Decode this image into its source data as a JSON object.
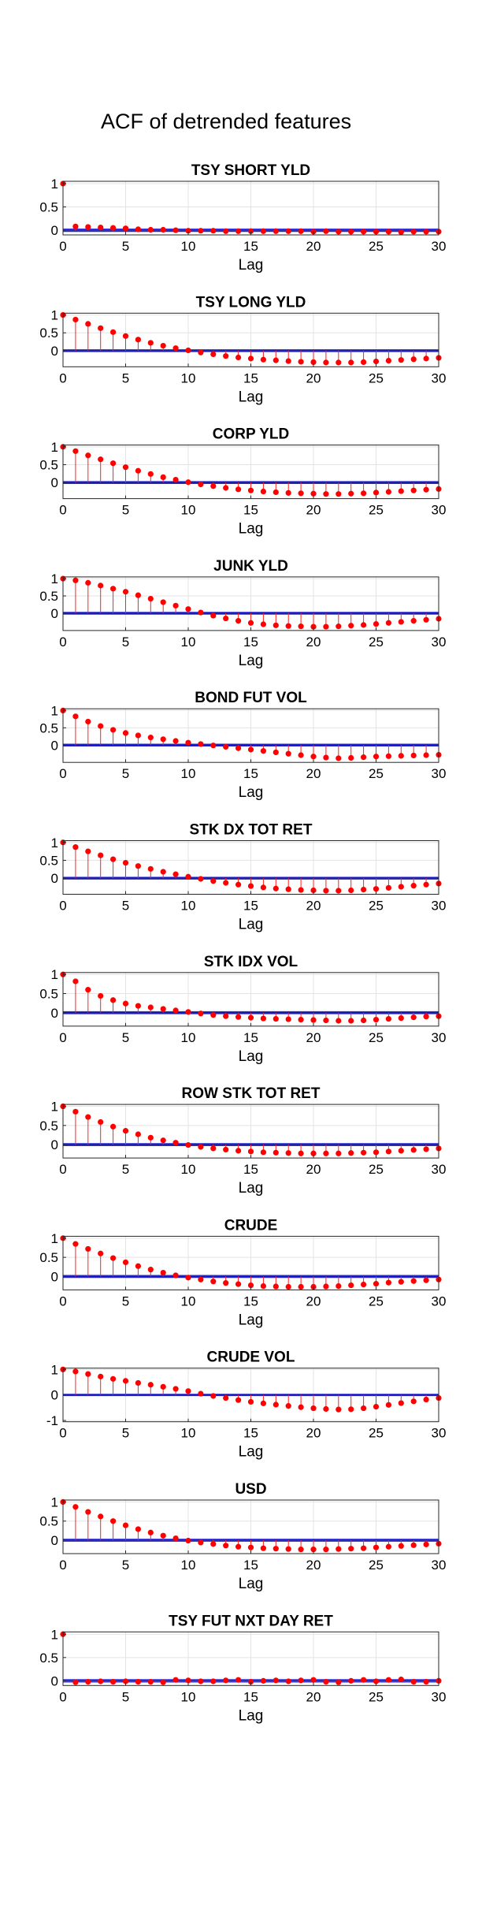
{
  "figure": {
    "title": "ACF of detrended features"
  },
  "chart_data": [
    {
      "type": "stem",
      "title": "TSY SHORT YLD",
      "xlabel": "Lag",
      "ylabel": "",
      "xlim": [
        0,
        30
      ],
      "ylim": [
        -0.1,
        1.05
      ],
      "xticks": [
        0,
        5,
        10,
        15,
        20,
        25,
        30
      ],
      "yticks": [
        0,
        0.5,
        1
      ],
      "ytick_labels": [
        "0",
        "0.5",
        "1"
      ],
      "grid": true,
      "conf_bound": 0.025,
      "x": [
        0,
        1,
        2,
        3,
        4,
        5,
        6,
        7,
        8,
        9,
        10,
        11,
        12,
        13,
        14,
        15,
        16,
        17,
        18,
        19,
        20,
        21,
        22,
        23,
        24,
        25,
        26,
        27,
        28,
        29,
        30
      ],
      "values": [
        1,
        0.08,
        0.07,
        0.06,
        0.05,
        0.04,
        0.02,
        0.01,
        0.01,
        0.0,
        -0.01,
        -0.01,
        -0.01,
        -0.02,
        -0.02,
        -0.02,
        -0.02,
        -0.02,
        -0.02,
        -0.02,
        -0.03,
        -0.02,
        -0.03,
        -0.03,
        -0.03,
        -0.03,
        -0.03,
        -0.04,
        -0.03,
        -0.03,
        -0.03
      ]
    },
    {
      "type": "stem",
      "title": "TSY LONG YLD",
      "xlabel": "Lag",
      "ylabel": "",
      "xlim": [
        0,
        30
      ],
      "ylim": [
        -0.45,
        1.05
      ],
      "xticks": [
        0,
        5,
        10,
        15,
        20,
        25,
        30
      ],
      "yticks": [
        0,
        0.5,
        1
      ],
      "ytick_labels": [
        "0",
        "0.5",
        "1"
      ],
      "grid": true,
      "conf_bound": 0.025,
      "x": [
        0,
        1,
        2,
        3,
        4,
        5,
        6,
        7,
        8,
        9,
        10,
        11,
        12,
        13,
        14,
        15,
        16,
        17,
        18,
        19,
        20,
        21,
        22,
        23,
        24,
        25,
        26,
        27,
        28,
        29,
        30
      ],
      "values": [
        1,
        0.87,
        0.75,
        0.63,
        0.52,
        0.41,
        0.31,
        0.22,
        0.14,
        0.07,
        0.01,
        -0.05,
        -0.1,
        -0.15,
        -0.19,
        -0.22,
        -0.25,
        -0.27,
        -0.29,
        -0.31,
        -0.32,
        -0.33,
        -0.33,
        -0.33,
        -0.32,
        -0.3,
        -0.28,
        -0.26,
        -0.24,
        -0.22,
        -0.2
      ]
    },
    {
      "type": "stem",
      "title": "CORP YLD",
      "xlabel": "Lag",
      "ylabel": "",
      "xlim": [
        0,
        30
      ],
      "ylim": [
        -0.45,
        1.05
      ],
      "xticks": [
        0,
        5,
        10,
        15,
        20,
        25,
        30
      ],
      "yticks": [
        0,
        0.5,
        1
      ],
      "ytick_labels": [
        "0",
        "0.5",
        "1"
      ],
      "grid": true,
      "conf_bound": 0.025,
      "x": [
        0,
        1,
        2,
        3,
        4,
        5,
        6,
        7,
        8,
        9,
        10,
        11,
        12,
        13,
        14,
        15,
        16,
        17,
        18,
        19,
        20,
        21,
        22,
        23,
        24,
        25,
        26,
        27,
        28,
        29,
        30
      ],
      "values": [
        1,
        0.88,
        0.76,
        0.65,
        0.54,
        0.43,
        0.33,
        0.24,
        0.15,
        0.08,
        0.01,
        -0.05,
        -0.1,
        -0.15,
        -0.19,
        -0.22,
        -0.25,
        -0.27,
        -0.29,
        -0.3,
        -0.31,
        -0.32,
        -0.32,
        -0.31,
        -0.3,
        -0.28,
        -0.26,
        -0.24,
        -0.22,
        -0.2,
        -0.18
      ]
    },
    {
      "type": "stem",
      "title": "JUNK YLD",
      "xlabel": "Lag",
      "ylabel": "",
      "xlim": [
        0,
        30
      ],
      "ylim": [
        -0.5,
        1.05
      ],
      "xticks": [
        0,
        5,
        10,
        15,
        20,
        25,
        30
      ],
      "yticks": [
        0,
        0.5,
        1
      ],
      "ytick_labels": [
        "0",
        "0.5",
        "1"
      ],
      "grid": true,
      "conf_bound": 0.025,
      "x": [
        0,
        1,
        2,
        3,
        4,
        5,
        6,
        7,
        8,
        9,
        10,
        11,
        12,
        13,
        14,
        15,
        16,
        17,
        18,
        19,
        20,
        21,
        22,
        23,
        24,
        25,
        26,
        27,
        28,
        29,
        30
      ],
      "values": [
        1,
        0.95,
        0.88,
        0.8,
        0.71,
        0.62,
        0.52,
        0.42,
        0.32,
        0.22,
        0.12,
        0.02,
        -0.07,
        -0.15,
        -0.22,
        -0.28,
        -0.32,
        -0.35,
        -0.37,
        -0.38,
        -0.39,
        -0.39,
        -0.38,
        -0.36,
        -0.34,
        -0.31,
        -0.28,
        -0.25,
        -0.22,
        -0.19,
        -0.16
      ]
    },
    {
      "type": "stem",
      "title": "BOND FUT VOL",
      "xlabel": "Lag",
      "ylabel": "",
      "xlim": [
        0,
        30
      ],
      "ylim": [
        -0.5,
        1.05
      ],
      "xticks": [
        0,
        5,
        10,
        15,
        20,
        25,
        30
      ],
      "yticks": [
        0,
        0.5,
        1
      ],
      "ytick_labels": [
        "0",
        "0.5",
        "1"
      ],
      "grid": true,
      "conf_bound": 0.025,
      "x": [
        0,
        1,
        2,
        3,
        4,
        5,
        6,
        7,
        8,
        9,
        10,
        11,
        12,
        13,
        14,
        15,
        16,
        17,
        18,
        19,
        20,
        21,
        22,
        23,
        24,
        25,
        26,
        27,
        28,
        29,
        30
      ],
      "values": [
        1,
        0.83,
        0.68,
        0.55,
        0.44,
        0.35,
        0.28,
        0.22,
        0.17,
        0.12,
        0.07,
        0.03,
        -0.01,
        -0.05,
        -0.09,
        -0.13,
        -0.17,
        -0.21,
        -0.25,
        -0.29,
        -0.33,
        -0.36,
        -0.38,
        -0.37,
        -0.35,
        -0.33,
        -0.32,
        -0.31,
        -0.3,
        -0.29,
        -0.28
      ]
    },
    {
      "type": "stem",
      "title": "STK DX TOT RET",
      "xlabel": "Lag",
      "ylabel": "",
      "xlim": [
        0,
        30
      ],
      "ylim": [
        -0.45,
        1.05
      ],
      "xticks": [
        0,
        5,
        10,
        15,
        20,
        25,
        30
      ],
      "yticks": [
        0,
        0.5,
        1
      ],
      "ytick_labels": [
        "0",
        "0.5",
        "1"
      ],
      "grid": true,
      "conf_bound": 0.025,
      "x": [
        0,
        1,
        2,
        3,
        4,
        5,
        6,
        7,
        8,
        9,
        10,
        11,
        12,
        13,
        14,
        15,
        16,
        17,
        18,
        19,
        20,
        21,
        22,
        23,
        24,
        25,
        26,
        27,
        28,
        29,
        30
      ],
      "values": [
        1,
        0.87,
        0.75,
        0.64,
        0.53,
        0.43,
        0.34,
        0.26,
        0.18,
        0.11,
        0.04,
        -0.02,
        -0.08,
        -0.13,
        -0.18,
        -0.22,
        -0.26,
        -0.29,
        -0.31,
        -0.33,
        -0.34,
        -0.35,
        -0.35,
        -0.34,
        -0.32,
        -0.3,
        -0.27,
        -0.24,
        -0.21,
        -0.18,
        -0.15
      ]
    },
    {
      "type": "stem",
      "title": "STK IDX VOL",
      "xlabel": "Lag",
      "ylabel": "",
      "xlim": [
        0,
        30
      ],
      "ylim": [
        -0.35,
        1.05
      ],
      "xticks": [
        0,
        5,
        10,
        15,
        20,
        25,
        30
      ],
      "yticks": [
        0,
        0.5,
        1
      ],
      "ytick_labels": [
        "0",
        "0.5",
        "1"
      ],
      "grid": true,
      "conf_bound": 0.025,
      "x": [
        0,
        1,
        2,
        3,
        4,
        5,
        6,
        7,
        8,
        9,
        10,
        11,
        12,
        13,
        14,
        15,
        16,
        17,
        18,
        19,
        20,
        21,
        22,
        23,
        24,
        25,
        26,
        27,
        28,
        29,
        30
      ],
      "values": [
        1,
        0.82,
        0.6,
        0.44,
        0.33,
        0.24,
        0.18,
        0.14,
        0.1,
        0.06,
        0.02,
        -0.02,
        -0.06,
        -0.09,
        -0.11,
        -0.13,
        -0.15,
        -0.16,
        -0.17,
        -0.18,
        -0.19,
        -0.2,
        -0.21,
        -0.21,
        -0.2,
        -0.18,
        -0.16,
        -0.14,
        -0.12,
        -0.1,
        -0.09
      ]
    },
    {
      "type": "stem",
      "title": "ROW STK TOT RET",
      "xlabel": "Lag",
      "ylabel": "",
      "xlim": [
        0,
        30
      ],
      "ylim": [
        -0.35,
        1.05
      ],
      "xticks": [
        0,
        5,
        10,
        15,
        20,
        25,
        30
      ],
      "yticks": [
        0,
        0.5,
        1
      ],
      "ytick_labels": [
        "0",
        "0.5",
        "1"
      ],
      "grid": true,
      "conf_bound": 0.025,
      "x": [
        0,
        1,
        2,
        3,
        4,
        5,
        6,
        7,
        8,
        9,
        10,
        11,
        12,
        13,
        14,
        15,
        16,
        17,
        18,
        19,
        20,
        21,
        22,
        23,
        24,
        25,
        26,
        27,
        28,
        29,
        30
      ],
      "values": [
        1,
        0.86,
        0.72,
        0.59,
        0.47,
        0.36,
        0.27,
        0.18,
        0.11,
        0.05,
        -0.01,
        -0.06,
        -0.1,
        -0.13,
        -0.16,
        -0.18,
        -0.2,
        -0.21,
        -0.22,
        -0.23,
        -0.23,
        -0.23,
        -0.23,
        -0.22,
        -0.21,
        -0.2,
        -0.18,
        -0.16,
        -0.14,
        -0.12,
        -0.1
      ]
    },
    {
      "type": "stem",
      "title": "CRUDE",
      "xlabel": "Lag",
      "ylabel": "",
      "xlim": [
        0,
        30
      ],
      "ylim": [
        -0.35,
        1.05
      ],
      "xticks": [
        0,
        5,
        10,
        15,
        20,
        25,
        30
      ],
      "yticks": [
        0,
        0.5,
        1
      ],
      "ytick_labels": [
        "0",
        "0.5",
        "1"
      ],
      "grid": true,
      "conf_bound": 0.025,
      "x": [
        0,
        1,
        2,
        3,
        4,
        5,
        6,
        7,
        8,
        9,
        10,
        11,
        12,
        13,
        14,
        15,
        16,
        17,
        18,
        19,
        20,
        21,
        22,
        23,
        24,
        25,
        26,
        27,
        28,
        29,
        30
      ],
      "values": [
        1,
        0.85,
        0.72,
        0.6,
        0.48,
        0.37,
        0.27,
        0.18,
        0.1,
        0.03,
        -0.03,
        -0.08,
        -0.13,
        -0.17,
        -0.2,
        -0.23,
        -0.25,
        -0.26,
        -0.27,
        -0.27,
        -0.27,
        -0.26,
        -0.25,
        -0.23,
        -0.21,
        -0.19,
        -0.16,
        -0.14,
        -0.12,
        -0.1,
        -0.08
      ]
    },
    {
      "type": "stem",
      "title": "CRUDE VOL",
      "xlabel": "Lag",
      "ylabel": "",
      "xlim": [
        0,
        30
      ],
      "ylim": [
        -1.05,
        1.05
      ],
      "xticks": [
        0,
        5,
        10,
        15,
        20,
        25,
        30
      ],
      "yticks": [
        -1,
        0,
        1
      ],
      "ytick_labels": [
        "-1",
        "0",
        "1"
      ],
      "grid": true,
      "conf_bound": 0.025,
      "x": [
        0,
        1,
        2,
        3,
        4,
        5,
        6,
        7,
        8,
        9,
        10,
        11,
        12,
        13,
        14,
        15,
        16,
        17,
        18,
        19,
        20,
        21,
        22,
        23,
        24,
        25,
        26,
        27,
        28,
        29,
        30
      ],
      "values": [
        1,
        0.92,
        0.82,
        0.72,
        0.63,
        0.55,
        0.47,
        0.4,
        0.32,
        0.24,
        0.15,
        0.05,
        -0.04,
        -0.12,
        -0.2,
        -0.27,
        -0.33,
        -0.38,
        -0.43,
        -0.48,
        -0.52,
        -0.55,
        -0.57,
        -0.56,
        -0.52,
        -0.46,
        -0.39,
        -0.32,
        -0.25,
        -0.18,
        -0.12
      ]
    },
    {
      "type": "stem",
      "title": "USD",
      "xlabel": "Lag",
      "ylabel": "",
      "xlim": [
        0,
        30
      ],
      "ylim": [
        -0.35,
        1.05
      ],
      "xticks": [
        0,
        5,
        10,
        15,
        20,
        25,
        30
      ],
      "yticks": [
        0,
        0.5,
        1
      ],
      "ytick_labels": [
        "0",
        "0.5",
        "1"
      ],
      "grid": true,
      "conf_bound": 0.025,
      "x": [
        0,
        1,
        2,
        3,
        4,
        5,
        6,
        7,
        8,
        9,
        10,
        11,
        12,
        13,
        14,
        15,
        16,
        17,
        18,
        19,
        20,
        21,
        22,
        23,
        24,
        25,
        26,
        27,
        28,
        29,
        30
      ],
      "values": [
        1,
        0.87,
        0.74,
        0.62,
        0.5,
        0.39,
        0.29,
        0.2,
        0.12,
        0.05,
        -0.01,
        -0.06,
        -0.1,
        -0.14,
        -0.17,
        -0.19,
        -0.21,
        -0.22,
        -0.23,
        -0.24,
        -0.24,
        -0.24,
        -0.23,
        -0.22,
        -0.21,
        -0.19,
        -0.17,
        -0.15,
        -0.13,
        -0.11,
        -0.09
      ]
    },
    {
      "type": "stem",
      "title": "TSY FUT NXT DAY RET",
      "xlabel": "Lag",
      "ylabel": "",
      "xlim": [
        0,
        30
      ],
      "ylim": [
        -0.1,
        1.05
      ],
      "xticks": [
        0,
        5,
        10,
        15,
        20,
        25,
        30
      ],
      "yticks": [
        0,
        0.5,
        1
      ],
      "ytick_labels": [
        "0",
        "0.5",
        "1"
      ],
      "grid": true,
      "conf_bound": 0.025,
      "x": [
        0,
        1,
        2,
        3,
        4,
        5,
        6,
        7,
        8,
        9,
        10,
        11,
        12,
        13,
        14,
        15,
        16,
        17,
        18,
        19,
        20,
        21,
        22,
        23,
        24,
        25,
        26,
        27,
        28,
        29,
        30
      ],
      "values": [
        1,
        -0.03,
        -0.02,
        -0.01,
        -0.02,
        -0.01,
        -0.02,
        -0.02,
        -0.03,
        0.02,
        0.01,
        -0.01,
        -0.01,
        0.01,
        0.02,
        -0.02,
        0.0,
        0.01,
        -0.01,
        0.01,
        0.02,
        -0.02,
        -0.03,
        0.0,
        0.02,
        -0.01,
        0.02,
        0.03,
        -0.02,
        -0.02,
        0.0
      ]
    }
  ]
}
